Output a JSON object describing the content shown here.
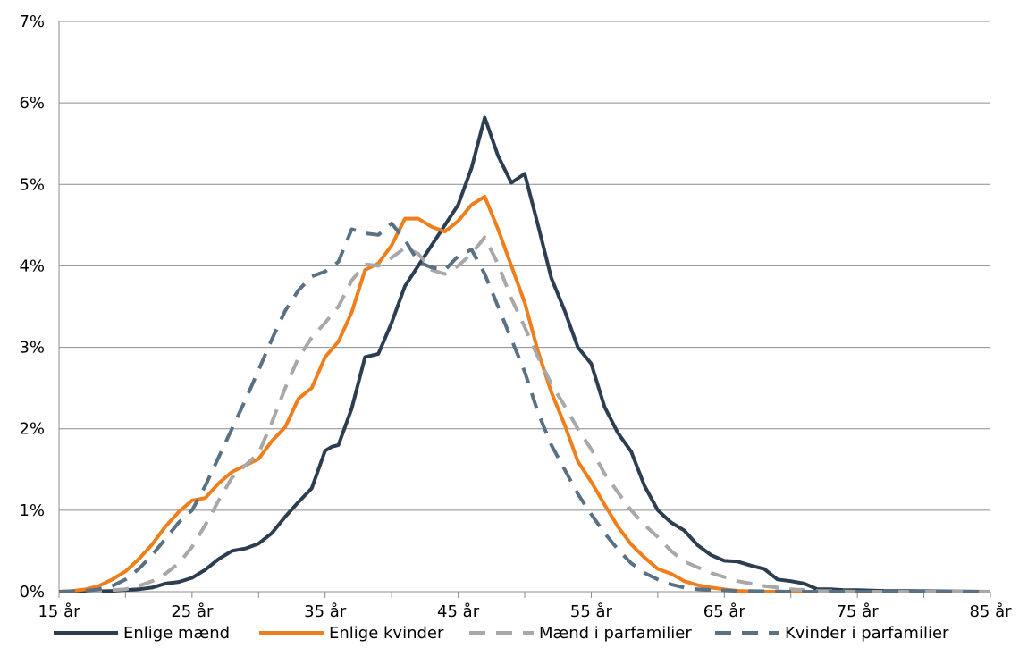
{
  "chart_data": {
    "type": "line",
    "xlim": [
      15,
      85
    ],
    "ylim": [
      0,
      7
    ],
    "x_ticks": [
      15,
      25,
      35,
      45,
      55,
      65,
      75,
      85
    ],
    "x_tick_labels": [
      "15 år",
      "25 år",
      "35 år",
      "45 år",
      "55 år",
      "65 år",
      "75 år",
      "85 år"
    ],
    "y_ticks": [
      0,
      1,
      2,
      3,
      4,
      5,
      6,
      7
    ],
    "y_tick_labels": [
      "0%",
      "1%",
      "2%",
      "3%",
      "4%",
      "5%",
      "6%",
      "7%"
    ],
    "grid": "horizontal",
    "legend_position": "bottom",
    "series": [
      {
        "name": "Enlige mænd",
        "color": "#2c3e50",
        "dash": "solid",
        "points": [
          [
            15,
            0
          ],
          [
            17,
            0
          ],
          [
            19,
            0.01
          ],
          [
            21,
            0.03
          ],
          [
            22,
            0.05
          ],
          [
            23,
            0.1
          ],
          [
            24,
            0.12
          ],
          [
            25,
            0.17
          ],
          [
            26,
            0.27
          ],
          [
            27,
            0.4
          ],
          [
            28,
            0.5
          ],
          [
            29,
            0.53
          ],
          [
            30,
            0.59
          ],
          [
            31,
            0.72
          ],
          [
            32,
            0.92
          ],
          [
            33,
            1.1
          ],
          [
            34,
            1.27
          ],
          [
            35,
            1.73
          ],
          [
            35.5,
            1.78
          ],
          [
            36,
            1.8
          ],
          [
            37,
            2.25
          ],
          [
            38,
            2.88
          ],
          [
            39,
            2.92
          ],
          [
            40,
            3.3
          ],
          [
            41,
            3.75
          ],
          [
            42,
            4.0
          ],
          [
            43,
            4.25
          ],
          [
            44,
            4.5
          ],
          [
            45,
            4.75
          ],
          [
            46,
            5.2
          ],
          [
            47,
            5.82
          ],
          [
            48,
            5.35
          ],
          [
            49,
            5.02
          ],
          [
            50,
            5.13
          ],
          [
            51,
            4.5
          ],
          [
            52,
            3.85
          ],
          [
            53,
            3.45
          ],
          [
            54,
            3.0
          ],
          [
            55,
            2.8
          ],
          [
            56,
            2.27
          ],
          [
            57,
            1.95
          ],
          [
            58,
            1.72
          ],
          [
            59,
            1.3
          ],
          [
            60,
            1.0
          ],
          [
            61,
            0.85
          ],
          [
            62,
            0.75
          ],
          [
            63,
            0.57
          ],
          [
            64,
            0.45
          ],
          [
            65,
            0.38
          ],
          [
            66,
            0.37
          ],
          [
            67,
            0.32
          ],
          [
            68,
            0.28
          ],
          [
            69,
            0.15
          ],
          [
            70,
            0.13
          ],
          [
            71,
            0.1
          ],
          [
            72,
            0.03
          ],
          [
            73,
            0.03
          ],
          [
            74,
            0.02
          ],
          [
            75,
            0.02
          ],
          [
            77,
            0.01
          ],
          [
            85,
            0
          ]
        ]
      },
      {
        "name": "Enlige kvinder",
        "color": "#ee7f1c",
        "dash": "solid",
        "points": [
          [
            15,
            0
          ],
          [
            16,
            0.01
          ],
          [
            17,
            0.03
          ],
          [
            18,
            0.07
          ],
          [
            19,
            0.15
          ],
          [
            20,
            0.25
          ],
          [
            21,
            0.4
          ],
          [
            22,
            0.58
          ],
          [
            23,
            0.8
          ],
          [
            24,
            0.98
          ],
          [
            25,
            1.12
          ],
          [
            26,
            1.15
          ],
          [
            27,
            1.33
          ],
          [
            28,
            1.47
          ],
          [
            29,
            1.55
          ],
          [
            30,
            1.63
          ],
          [
            31,
            1.85
          ],
          [
            32,
            2.02
          ],
          [
            33,
            2.37
          ],
          [
            34,
            2.5
          ],
          [
            35,
            2.88
          ],
          [
            36,
            3.07
          ],
          [
            37,
            3.43
          ],
          [
            38,
            3.95
          ],
          [
            39,
            4.03
          ],
          [
            40,
            4.25
          ],
          [
            41,
            4.58
          ],
          [
            42,
            4.58
          ],
          [
            43,
            4.48
          ],
          [
            44,
            4.42
          ],
          [
            45,
            4.55
          ],
          [
            46,
            4.75
          ],
          [
            47,
            4.85
          ],
          [
            48,
            4.45
          ],
          [
            49,
            4.0
          ],
          [
            50,
            3.55
          ],
          [
            51,
            2.95
          ],
          [
            52,
            2.45
          ],
          [
            53,
            2.05
          ],
          [
            54,
            1.6
          ],
          [
            55,
            1.35
          ],
          [
            56,
            1.07
          ],
          [
            57,
            0.8
          ],
          [
            58,
            0.58
          ],
          [
            59,
            0.42
          ],
          [
            60,
            0.28
          ],
          [
            61,
            0.22
          ],
          [
            62,
            0.13
          ],
          [
            63,
            0.08
          ],
          [
            64,
            0.05
          ],
          [
            65,
            0.03
          ],
          [
            66,
            0.01
          ],
          [
            68,
            0
          ],
          [
            85,
            0
          ]
        ]
      },
      {
        "name": "Mænd i parfamilier",
        "color": "#a8a8a8",
        "dash": "dashed",
        "points": [
          [
            15,
            0
          ],
          [
            18,
            0.01
          ],
          [
            20,
            0.03
          ],
          [
            21,
            0.07
          ],
          [
            22,
            0.13
          ],
          [
            23,
            0.22
          ],
          [
            24,
            0.35
          ],
          [
            25,
            0.55
          ],
          [
            26,
            0.82
          ],
          [
            27,
            1.12
          ],
          [
            28,
            1.4
          ],
          [
            29,
            1.55
          ],
          [
            30,
            1.7
          ],
          [
            31,
            2.08
          ],
          [
            32,
            2.5
          ],
          [
            33,
            2.87
          ],
          [
            34,
            3.12
          ],
          [
            35,
            3.3
          ],
          [
            36,
            3.5
          ],
          [
            37,
            3.82
          ],
          [
            38,
            4.02
          ],
          [
            39,
            4.0
          ],
          [
            40,
            4.1
          ],
          [
            41,
            4.22
          ],
          [
            42,
            4.15
          ],
          [
            43,
            3.95
          ],
          [
            44,
            3.9
          ],
          [
            45,
            4.0
          ],
          [
            46,
            4.15
          ],
          [
            47,
            4.35
          ],
          [
            48,
            4.02
          ],
          [
            49,
            3.6
          ],
          [
            50,
            3.25
          ],
          [
            51,
            2.88
          ],
          [
            52,
            2.55
          ],
          [
            53,
            2.28
          ],
          [
            54,
            2.0
          ],
          [
            55,
            1.75
          ],
          [
            56,
            1.45
          ],
          [
            57,
            1.22
          ],
          [
            58,
            1.0
          ],
          [
            59,
            0.82
          ],
          [
            60,
            0.67
          ],
          [
            61,
            0.5
          ],
          [
            62,
            0.37
          ],
          [
            63,
            0.3
          ],
          [
            64,
            0.23
          ],
          [
            65,
            0.18
          ],
          [
            66,
            0.13
          ],
          [
            67,
            0.1
          ],
          [
            68,
            0.07
          ],
          [
            69,
            0.05
          ],
          [
            70,
            0.03
          ],
          [
            72,
            0.01
          ],
          [
            75,
            0
          ],
          [
            85,
            0
          ]
        ]
      },
      {
        "name": "Kvinder i parfamilier",
        "color": "#5a7184",
        "dash": "dashed",
        "points": [
          [
            15,
            0
          ],
          [
            17,
            0.01
          ],
          [
            18,
            0.03
          ],
          [
            19,
            0.07
          ],
          [
            20,
            0.15
          ],
          [
            21,
            0.28
          ],
          [
            22,
            0.45
          ],
          [
            23,
            0.65
          ],
          [
            24,
            0.85
          ],
          [
            25,
            1.0
          ],
          [
            26,
            1.3
          ],
          [
            27,
            1.65
          ],
          [
            28,
            2.0
          ],
          [
            29,
            2.35
          ],
          [
            30,
            2.72
          ],
          [
            31,
            3.1
          ],
          [
            32,
            3.45
          ],
          [
            33,
            3.7
          ],
          [
            34,
            3.87
          ],
          [
            35,
            3.93
          ],
          [
            36,
            4.05
          ],
          [
            37,
            4.45
          ],
          [
            38,
            4.4
          ],
          [
            39,
            4.38
          ],
          [
            40,
            4.52
          ],
          [
            41,
            4.32
          ],
          [
            42,
            4.05
          ],
          [
            43,
            3.98
          ],
          [
            44,
            3.95
          ],
          [
            45,
            4.12
          ],
          [
            46,
            4.2
          ],
          [
            47,
            3.9
          ],
          [
            48,
            3.5
          ],
          [
            49,
            3.1
          ],
          [
            50,
            2.7
          ],
          [
            51,
            2.2
          ],
          [
            52,
            1.8
          ],
          [
            53,
            1.5
          ],
          [
            54,
            1.2
          ],
          [
            55,
            0.95
          ],
          [
            56,
            0.72
          ],
          [
            57,
            0.52
          ],
          [
            58,
            0.35
          ],
          [
            59,
            0.23
          ],
          [
            60,
            0.15
          ],
          [
            61,
            0.09
          ],
          [
            62,
            0.05
          ],
          [
            63,
            0.03
          ],
          [
            64,
            0.02
          ],
          [
            66,
            0.01
          ],
          [
            70,
            0
          ],
          [
            85,
            0
          ]
        ]
      }
    ]
  }
}
